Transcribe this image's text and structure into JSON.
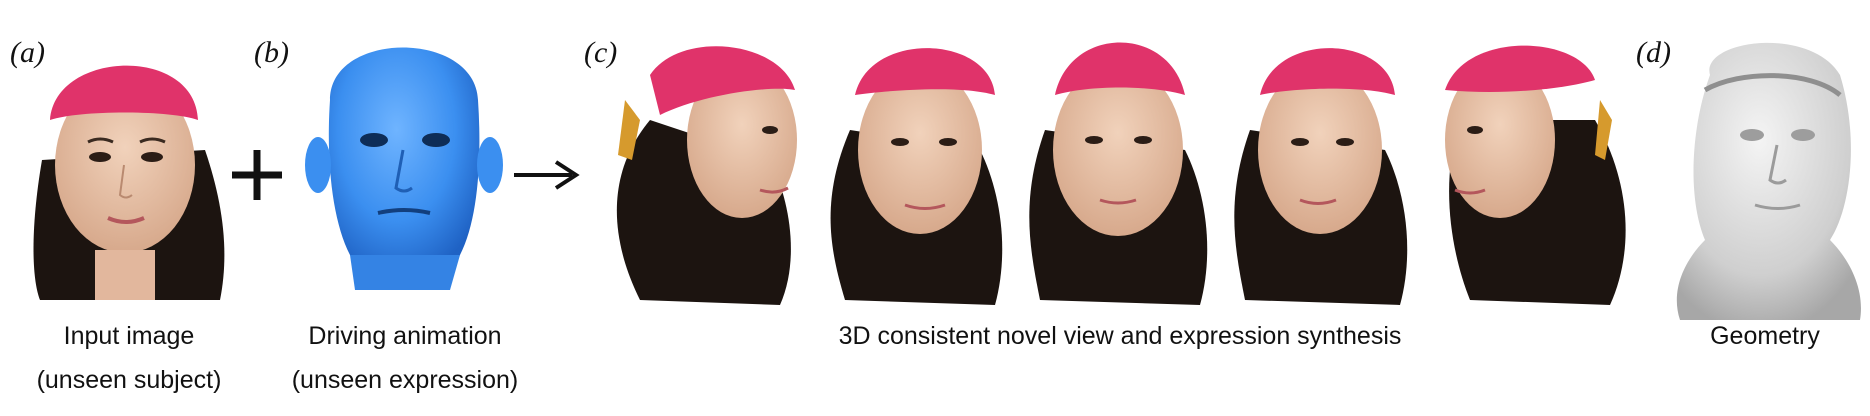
{
  "figure": {
    "panels": [
      {
        "label": "(a)",
        "caption_lines": [
          "Input image",
          "(unseen subject)"
        ]
      },
      {
        "label": "(b)",
        "caption_lines": [
          "Driving animation",
          "(unseen expression)"
        ]
      },
      {
        "label": "(c)",
        "caption_lines": [
          "3D consistent novel view and expression synthesis"
        ]
      },
      {
        "label": "(d)",
        "caption_lines": [
          "Geometry"
        ]
      }
    ],
    "operators": {
      "plus": "+",
      "arrow": "→"
    },
    "images": {
      "input_photo": "input-photo",
      "driving_mesh": "blue-face-mesh",
      "novel_views": [
        "novel-view-1",
        "novel-view-2",
        "novel-view-3",
        "novel-view-4",
        "novel-view-5"
      ],
      "geometry_mesh": "gray-geometry-mesh"
    },
    "colors": {
      "cap": "#e0336a",
      "mesh_blue": "#3b8ff0",
      "skin": "#e8c3a8",
      "hair": "#1c1410",
      "geometry_gray": "#d9d9d9"
    }
  }
}
